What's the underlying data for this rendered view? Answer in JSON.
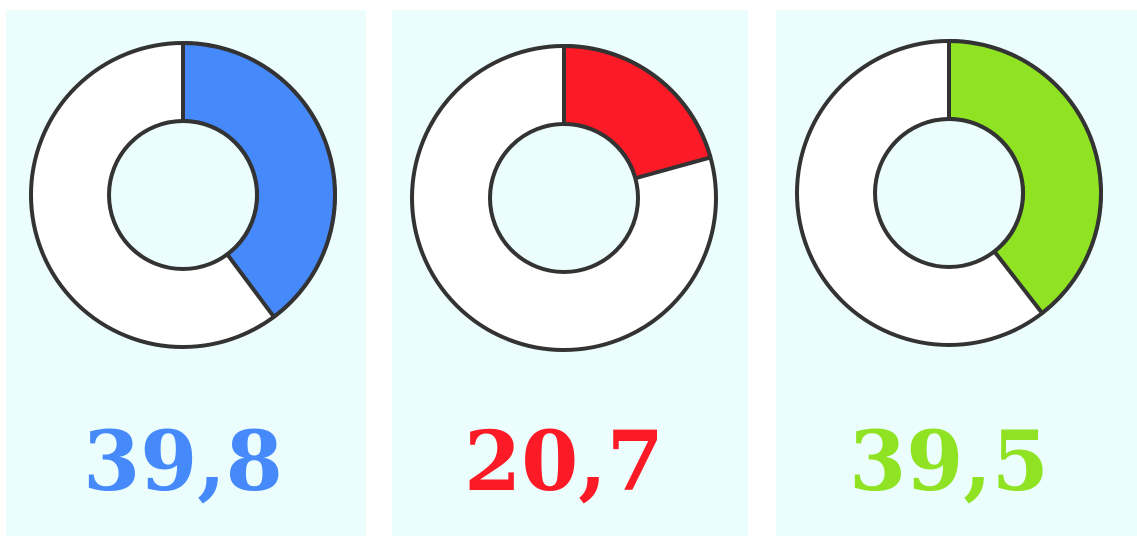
{
  "chart_data": [
    {
      "type": "donut",
      "values": [
        39.8
      ],
      "value_labels": [
        "39,8"
      ],
      "color": "#4589fb",
      "ylim": [
        0,
        100
      ]
    },
    {
      "type": "donut",
      "values": [
        20.7
      ],
      "value_labels": [
        "20,7"
      ],
      "color": "#fb1a25",
      "ylim": [
        0,
        100
      ]
    },
    {
      "type": "donut",
      "values": [
        39.5
      ],
      "value_labels": [
        "39,5"
      ],
      "color": "#8fe322",
      "ylim": [
        0,
        100
      ]
    }
  ]
}
